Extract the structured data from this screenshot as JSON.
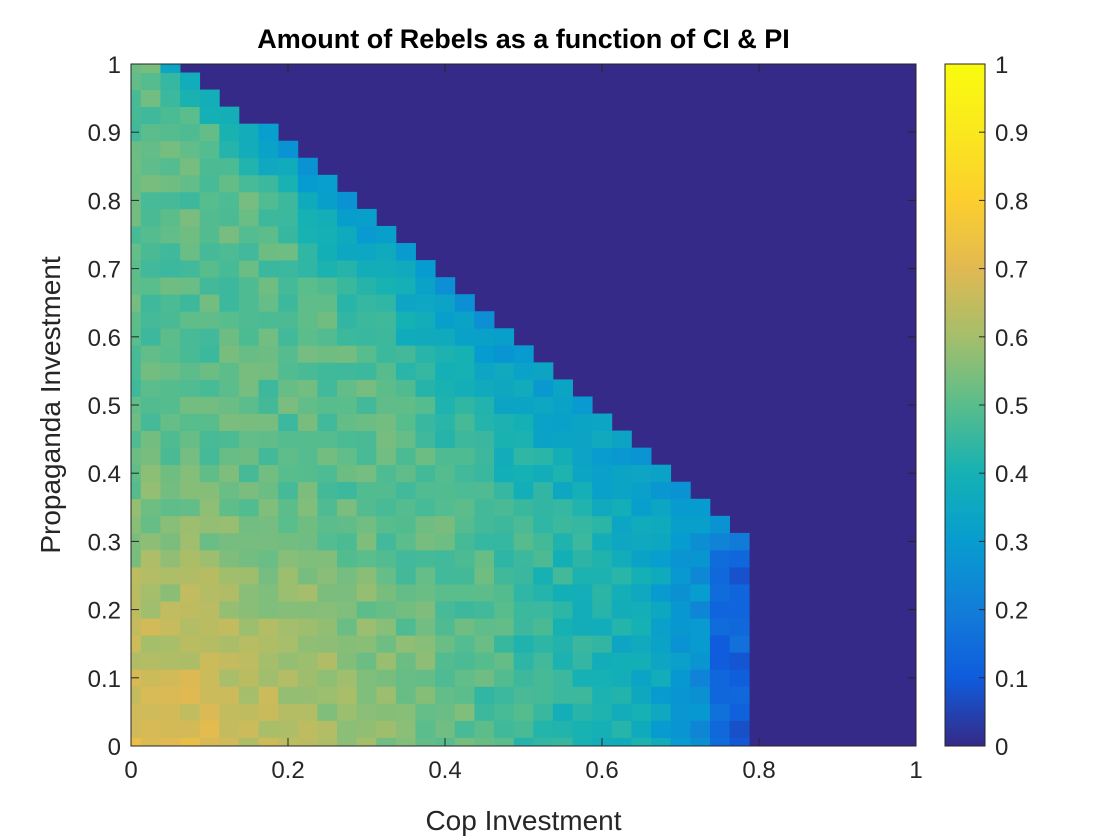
{
  "chart_data": {
    "type": "heatmap",
    "title": "Amount of Rebels as a function of CI & PI",
    "xlabel": "Cop Investment",
    "ylabel": "Propaganda Investment",
    "xlim": [
      0,
      1
    ],
    "ylim": [
      0,
      1
    ],
    "x_ticks": [
      "0",
      "0.2",
      "0.4",
      "0.6",
      "0.8",
      "1"
    ],
    "y_ticks": [
      "0",
      "0.1",
      "0.2",
      "0.3",
      "0.4",
      "0.5",
      "0.6",
      "0.7",
      "0.8",
      "0.9",
      "1"
    ],
    "colorbar": {
      "colormap": "parula",
      "range": [
        0,
        1
      ],
      "ticks": [
        "0",
        "0.1",
        "0.2",
        "0.3",
        "0.4",
        "0.5",
        "0.6",
        "0.7",
        "0.8",
        "0.9",
        "1"
      ],
      "location": "right"
    },
    "grid": false,
    "grid_size": [
      41,
      41
    ],
    "model": {
      "description_note": "approximate cell values estimated from colors",
      "zero_region_background": 0,
      "max_value_at_origin": 0.74,
      "typical_interior_value": 0.5,
      "edge_value_near_boundary": 0.3,
      "boundary": [
        {
          "y": 0.0,
          "x": 0.775
        },
        {
          "y": 0.3,
          "x": 0.775
        },
        {
          "y": 0.33,
          "x": 0.75
        },
        {
          "y": 0.36,
          "x": 0.72
        },
        {
          "y": 0.4,
          "x": 0.675
        },
        {
          "y": 0.5,
          "x": 0.575
        },
        {
          "y": 0.6,
          "x": 0.475
        },
        {
          "y": 0.7,
          "x": 0.375
        },
        {
          "y": 0.8,
          "x": 0.275
        },
        {
          "y": 0.9,
          "x": 0.175
        },
        {
          "y": 1.0,
          "x": 0.05
        }
      ]
    }
  }
}
